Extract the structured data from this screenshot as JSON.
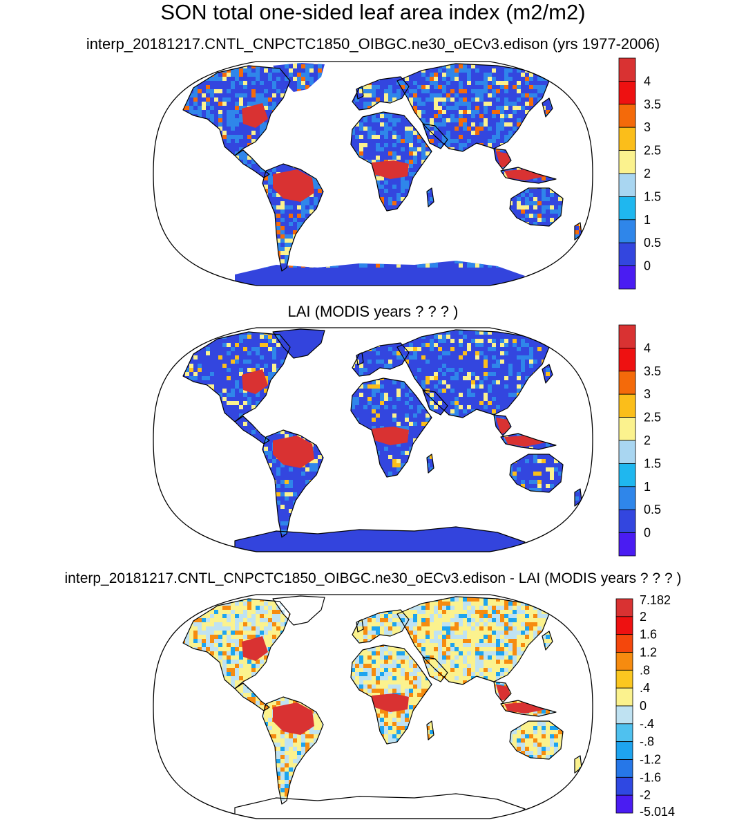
{
  "title": "SON total one-sided leaf area index (m2/m2)",
  "colors": {
    "ocean": "#ffffff",
    "frame": "#000000",
    "coast": "#000000",
    "ice_panel0": "#3344dd",
    "ice_panel1": "#3344dd",
    "ice_panel2": "#ffffff"
  },
  "panels": [
    {
      "title": "interp_20181217.CNTL_CNPCTC1850_OIBGC.ne30_oECv3.edison (yrs 1977-2006)",
      "projection": "Robinson",
      "colorbar": {
        "labels": [
          "4",
          "3.5",
          "3",
          "2.5",
          "2",
          "1.5",
          "1",
          "0.5",
          "0"
        ],
        "colors": [
          "#d93232",
          "#ee1111",
          "#f46a0a",
          "#fbbe1a",
          "#fbf28e",
          "#a9d6f1",
          "#1fb7ef",
          "#2f86ea",
          "#3346df",
          "#4a1cf2"
        ]
      }
    },
    {
      "title": "LAI (MODIS years ? ? ? )",
      "projection": "Robinson",
      "colorbar": {
        "labels": [
          "4",
          "3.5",
          "3",
          "2.5",
          "2",
          "1.5",
          "1",
          "0.5",
          "0"
        ],
        "colors": [
          "#d93232",
          "#ee1111",
          "#f46a0a",
          "#fbbe1a",
          "#fbf28e",
          "#a9d6f1",
          "#1fb7ef",
          "#2f86ea",
          "#3346df",
          "#4a1cf2"
        ]
      }
    },
    {
      "title": "interp_20181217.CNTL_CNPCTC1850_OIBGC.ne30_oECv3.edison - LAI (MODIS years ? ? ? )",
      "projection": "Robinson",
      "colorbar": {
        "labels": [
          "7.182",
          "2",
          "1.6",
          "1.2",
          ".8",
          ".4",
          "0",
          "-.4",
          "-.8",
          "-1.2",
          "-1.6",
          "-2",
          "-5.014"
        ],
        "colors": [
          "#d93232",
          "#ee1111",
          "#f4470c",
          "#f68b0f",
          "#fbc720",
          "#fbf28e",
          "#bfe2f2",
          "#4fc1ef",
          "#1ea4ef",
          "#2677e8",
          "#2f48e2",
          "#4a1cf2"
        ]
      }
    }
  ]
}
